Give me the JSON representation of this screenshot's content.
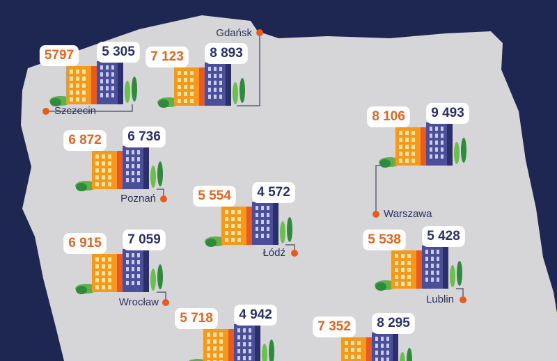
{
  "cities": [
    {
      "name": "Szczecin",
      "orange": "5797",
      "navy": "5 305"
    },
    {
      "name": "Gdańsk",
      "orange": "7 123",
      "navy": "8 893"
    },
    {
      "name": "Warszawa",
      "orange": "8 106",
      "navy": "9 493"
    },
    {
      "name": "Poznań",
      "orange": "6 872",
      "navy": "6 736"
    },
    {
      "name": "Łódź",
      "orange": "5 554",
      "navy": "4 572"
    },
    {
      "name": "Wrocław",
      "orange": "6 915",
      "navy": "7 059"
    },
    {
      "name": "Lublin",
      "orange": "5 538",
      "navy": "5 428"
    },
    {
      "orange": "5 718",
      "navy": "4 942"
    },
    {
      "orange": "7 352",
      "navy": "8 295"
    }
  ]
}
